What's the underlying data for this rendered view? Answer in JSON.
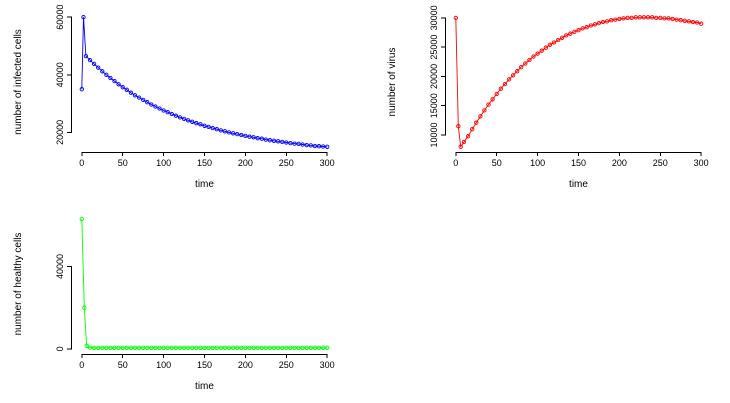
{
  "page": {
    "background": "#ffffff"
  },
  "chart_data": [
    {
      "type": "line",
      "title": "",
      "xlabel": "time",
      "ylabel": "number of infected cells",
      "color": "#0000ff",
      "marker": "open-circle",
      "legend": "none",
      "grid": false,
      "xlim": [
        -12,
        312
      ],
      "ylim": [
        13200,
        61800
      ],
      "xticks": [
        0,
        50,
        100,
        150,
        200,
        250,
        300
      ],
      "yticks": [
        20000,
        40000,
        60000
      ],
      "x": [
        0,
        2,
        5,
        10,
        15,
        20,
        25,
        30,
        35,
        40,
        45,
        50,
        55,
        60,
        65,
        70,
        75,
        80,
        85,
        90,
        95,
        100,
        105,
        110,
        115,
        120,
        125,
        130,
        135,
        140,
        145,
        150,
        155,
        160,
        165,
        170,
        175,
        180,
        185,
        190,
        195,
        200,
        205,
        210,
        215,
        220,
        225,
        230,
        235,
        240,
        245,
        250,
        255,
        260,
        265,
        270,
        275,
        280,
        285,
        290,
        295,
        300
      ],
      "y": [
        35000,
        60000,
        46500,
        45100,
        43800,
        42500,
        41200,
        40000,
        38900,
        37800,
        36700,
        35700,
        34800,
        33800,
        32900,
        32100,
        31300,
        30500,
        29700,
        29000,
        28300,
        27600,
        27000,
        26400,
        25800,
        25200,
        24700,
        24200,
        23700,
        23200,
        22800,
        22300,
        21900,
        21500,
        21100,
        20700,
        20400,
        20000,
        19700,
        19400,
        19100,
        18800,
        18500,
        18300,
        18000,
        17800,
        17500,
        17300,
        17100,
        16900,
        16700,
        16500,
        16300,
        16100,
        16000,
        15800,
        15600,
        15500,
        15300,
        15200,
        15100,
        15000
      ]
    },
    {
      "type": "line",
      "title": "",
      "xlabel": "time",
      "ylabel": "number of virus",
      "color": "#ff0000",
      "marker": "open-circle",
      "legend": "none",
      "grid": false,
      "xlim": [
        -12,
        312
      ],
      "ylim": [
        7100,
        31000
      ],
      "xticks": [
        0,
        50,
        100,
        150,
        200,
        250,
        300
      ],
      "yticks": [
        10000,
        15000,
        20000,
        25000,
        30000
      ],
      "x": [
        0,
        3,
        6,
        10,
        15,
        20,
        25,
        30,
        35,
        40,
        45,
        50,
        55,
        60,
        65,
        70,
        75,
        80,
        85,
        90,
        95,
        100,
        105,
        110,
        115,
        120,
        125,
        130,
        135,
        140,
        145,
        150,
        155,
        160,
        165,
        170,
        175,
        180,
        185,
        190,
        195,
        200,
        205,
        210,
        215,
        220,
        225,
        230,
        235,
        240,
        245,
        250,
        255,
        260,
        265,
        270,
        275,
        280,
        285,
        290,
        295,
        300
      ],
      "y": [
        30000,
        11500,
        8000,
        8800,
        9800,
        11000,
        12100,
        13200,
        14200,
        15200,
        16100,
        17000,
        17900,
        18700,
        19500,
        20200,
        20900,
        21600,
        22200,
        22800,
        23400,
        23900,
        24400,
        24900,
        25400,
        25800,
        26200,
        26600,
        27000,
        27300,
        27600,
        27900,
        28200,
        28400,
        28700,
        28900,
        29100,
        29300,
        29400,
        29600,
        29700,
        29800,
        29900,
        30000,
        30000,
        30100,
        30100,
        30100,
        30100,
        30100,
        30000,
        30000,
        29900,
        29900,
        29800,
        29700,
        29600,
        29500,
        29400,
        29300,
        29200,
        29000
      ]
    },
    {
      "type": "line",
      "title": "",
      "xlabel": "time",
      "ylabel": "number of healthy cells",
      "color": "#00ff00",
      "marker": "open-circle",
      "legend": "none",
      "grid": false,
      "xlim": [
        -12,
        312
      ],
      "ylim": [
        -2500,
        65500
      ],
      "xticks": [
        0,
        50,
        100,
        150,
        200,
        250,
        300
      ],
      "yticks": [
        0,
        40000
      ],
      "x": [
        0,
        3,
        6,
        10,
        15,
        20,
        25,
        30,
        35,
        40,
        45,
        50,
        55,
        60,
        65,
        70,
        75,
        80,
        85,
        90,
        95,
        100,
        105,
        110,
        115,
        120,
        125,
        130,
        135,
        140,
        145,
        150,
        155,
        160,
        165,
        170,
        175,
        180,
        185,
        190,
        195,
        200,
        205,
        210,
        215,
        220,
        225,
        230,
        235,
        240,
        245,
        250,
        255,
        260,
        265,
        270,
        275,
        280,
        285,
        290,
        295,
        300
      ],
      "y": [
        63000,
        20000,
        1500,
        600,
        500,
        500,
        500,
        500,
        500,
        500,
        500,
        500,
        500,
        500,
        500,
        500,
        500,
        500,
        500,
        500,
        500,
        500,
        500,
        500,
        500,
        500,
        500,
        500,
        500,
        500,
        500,
        500,
        500,
        500,
        500,
        500,
        500,
        500,
        500,
        500,
        500,
        500,
        500,
        500,
        500,
        500,
        500,
        500,
        500,
        500,
        500,
        500,
        500,
        500,
        500,
        500,
        500,
        500,
        500,
        500,
        500,
        500
      ]
    }
  ]
}
